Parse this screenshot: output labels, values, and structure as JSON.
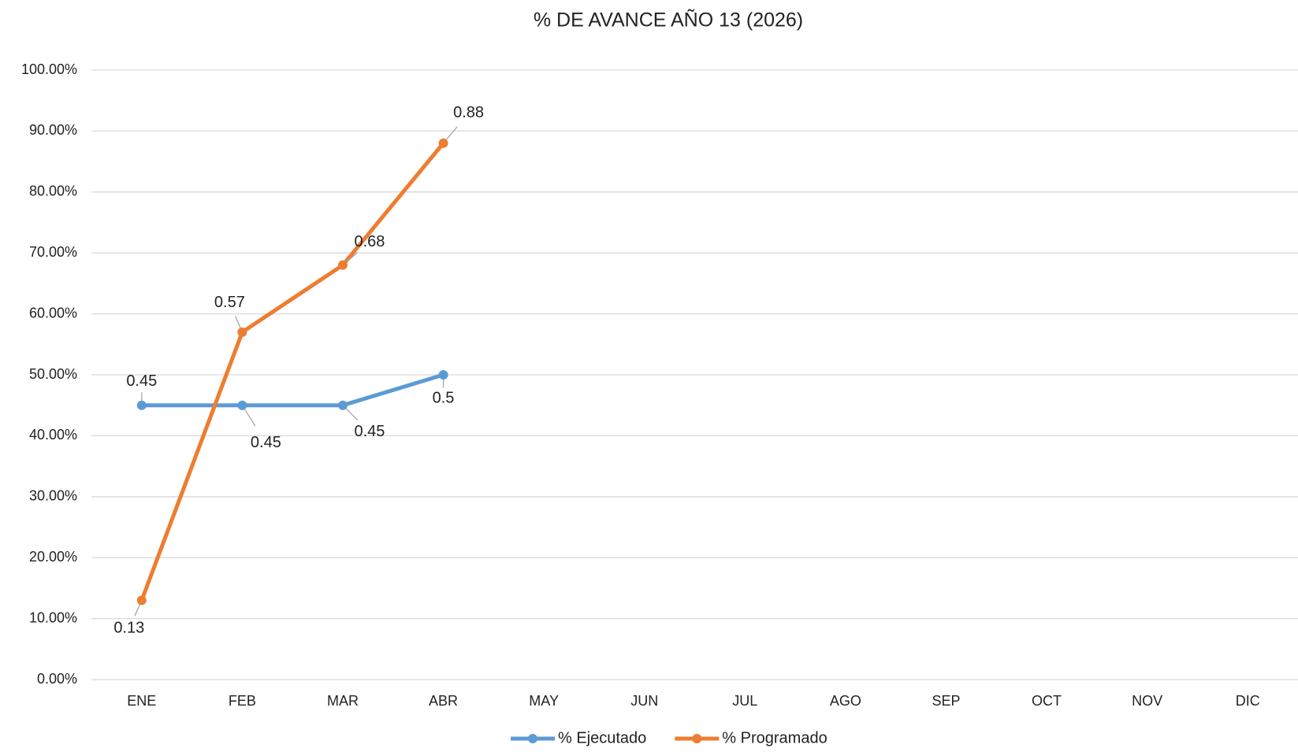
{
  "chart_data": {
    "type": "line",
    "title": "% DE AVANCE AÑO 13 (2026)",
    "categories": [
      "ENE",
      "FEB",
      "MAR",
      "ABR",
      "MAY",
      "JUN",
      "JUL",
      "AGO",
      "SEP",
      "OCT",
      "NOV",
      "DIC"
    ],
    "series": [
      {
        "name": "% Ejecutado",
        "color": "#5b9bd5",
        "values": [
          0.45,
          0.45,
          0.45,
          0.5,
          null,
          null,
          null,
          null,
          null,
          null,
          null,
          null
        ]
      },
      {
        "name": "% Programado",
        "color": "#ed7d31",
        "values": [
          0.13,
          0.57,
          0.68,
          0.88,
          null,
          null,
          null,
          null,
          null,
          null,
          null,
          null
        ]
      }
    ],
    "ylim": [
      0,
      1
    ],
    "yticks": [
      {
        "value": 0,
        "label": "0.00%"
      },
      {
        "value": 0.1,
        "label": "10.00%"
      },
      {
        "value": 0.2,
        "label": "20.00%"
      },
      {
        "value": 0.3,
        "label": "30.00%"
      },
      {
        "value": 0.4,
        "label": "40.00%"
      },
      {
        "value": 0.5,
        "label": "50.00%"
      },
      {
        "value": 0.6,
        "label": "60.00%"
      },
      {
        "value": 0.7,
        "label": "70.00%"
      },
      {
        "value": 0.8,
        "label": "80.00%"
      },
      {
        "value": 0.9,
        "label": "90.00%"
      },
      {
        "value": 1,
        "label": "100.00%"
      }
    ],
    "grid": true,
    "legend": "bottom"
  }
}
